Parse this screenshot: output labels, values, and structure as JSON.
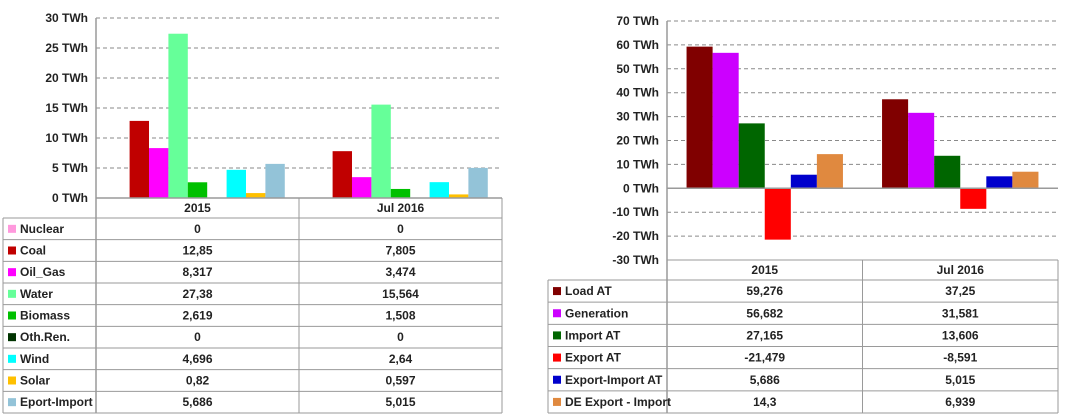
{
  "chart_data": [
    {
      "type": "bar",
      "title": "",
      "ylabel": "",
      "unit": "TWh",
      "ylim": [
        0,
        30
      ],
      "ystep": 5,
      "grid": true,
      "legend": "table-left",
      "categories": [
        "2015",
        "Jul 2016"
      ],
      "series": [
        {
          "name": "Nuclear",
          "color": "#ff99dd",
          "values": [
            0,
            0
          ],
          "labels": [
            "0",
            "0"
          ]
        },
        {
          "name": "Coal",
          "color": "#c00000",
          "values": [
            12.85,
            7.805
          ],
          "labels": [
            "12,85",
            "7,805"
          ]
        },
        {
          "name": "Oil_Gas",
          "color": "#ff00ff",
          "values": [
            8.317,
            3.474
          ],
          "labels": [
            "8,317",
            "3,474"
          ]
        },
        {
          "name": "Water",
          "color": "#66ff99",
          "values": [
            27.38,
            15.564
          ],
          "labels": [
            "27,38",
            "15,564"
          ]
        },
        {
          "name": "Biomass",
          "color": "#00c000",
          "values": [
            2.619,
            1.508
          ],
          "labels": [
            "2,619",
            "1,508"
          ]
        },
        {
          "name": "Oth.Ren.",
          "color": "#003300",
          "values": [
            0,
            0
          ],
          "labels": [
            "0",
            "0"
          ]
        },
        {
          "name": "Wind",
          "color": "#00ffff",
          "values": [
            4.696,
            2.64
          ],
          "labels": [
            "4,696",
            "2,64"
          ]
        },
        {
          "name": "Solar",
          "color": "#ffc000",
          "values": [
            0.82,
            0.597
          ],
          "labels": [
            "0,82",
            "0,597"
          ]
        },
        {
          "name": "Eport-Import",
          "color": "#93c3d8",
          "values": [
            5.686,
            5.015
          ],
          "labels": [
            "5,686",
            "5,015"
          ]
        }
      ]
    },
    {
      "type": "bar",
      "title": "",
      "ylabel": "",
      "unit": "TWh",
      "ylim": [
        -30,
        70
      ],
      "ystep": 10,
      "grid": true,
      "legend": "table-left",
      "categories": [
        "2015",
        "Jul 2016"
      ],
      "series": [
        {
          "name": "Load AT",
          "color": "#800000",
          "values": [
            59.276,
            37.25
          ],
          "labels": [
            "59,276",
            "37,25"
          ]
        },
        {
          "name": "Generation",
          "color": "#cc00ff",
          "values": [
            56.682,
            31.581
          ],
          "labels": [
            "56,682",
            "31,581"
          ]
        },
        {
          "name": "Import AT",
          "color": "#006600",
          "values": [
            27.165,
            13.606
          ],
          "labels": [
            "27,165",
            "13,606"
          ]
        },
        {
          "name": "Export AT",
          "color": "#ff0000",
          "values": [
            -21.479,
            -8.591
          ],
          "labels": [
            "-21,479",
            "-8,591"
          ]
        },
        {
          "name": "Export-Import AT",
          "color": "#0000cc",
          "values": [
            5.686,
            5.015
          ],
          "labels": [
            "5,686",
            "5,015"
          ]
        },
        {
          "name": "DE Export - Import",
          "color": "#e0893f",
          "values": [
            14.3,
            6.939
          ],
          "labels": [
            "14,3",
            "6,939"
          ]
        }
      ]
    }
  ]
}
